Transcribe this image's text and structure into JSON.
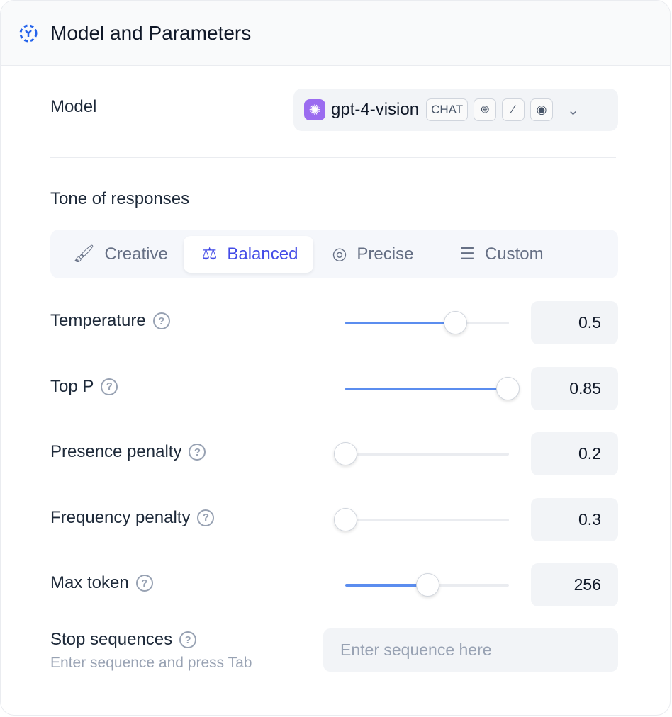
{
  "header": {
    "title": "Model and Parameters",
    "icon": "model-cube-icon"
  },
  "model": {
    "label": "Model",
    "name": "gpt-4-vision",
    "tag": "CHAT",
    "feature_icons": [
      "robot-icon",
      "magic-wand-icon",
      "eye-icon"
    ],
    "logo": "openai-icon"
  },
  "tone": {
    "label": "Tone of responses",
    "tabs": [
      {
        "label": "Creative",
        "icon": "brush-icon"
      },
      {
        "label": "Balanced",
        "icon": "scale-icon",
        "active": true
      },
      {
        "label": "Precise",
        "icon": "target-icon"
      },
      {
        "label": "Custom",
        "icon": "sliders-icon"
      }
    ]
  },
  "params": [
    {
      "label": "Temperature",
      "value": "0.5",
      "fraction": 0.67
    },
    {
      "label": "Top P",
      "value": "0.85",
      "fraction": 0.99
    },
    {
      "label": "Presence penalty",
      "value": "0.2",
      "fraction": 0
    },
    {
      "label": "Frequency penalty",
      "value": "0.3",
      "fraction": 0
    },
    {
      "label": "Max token",
      "value": "256",
      "fraction": 0.5
    }
  ],
  "stop": {
    "label": "Stop sequences",
    "hint": "Enter sequence and press Tab",
    "placeholder": "Enter sequence here"
  },
  "colors": {
    "accent": "#444ce7",
    "slider": "#5b8def"
  }
}
